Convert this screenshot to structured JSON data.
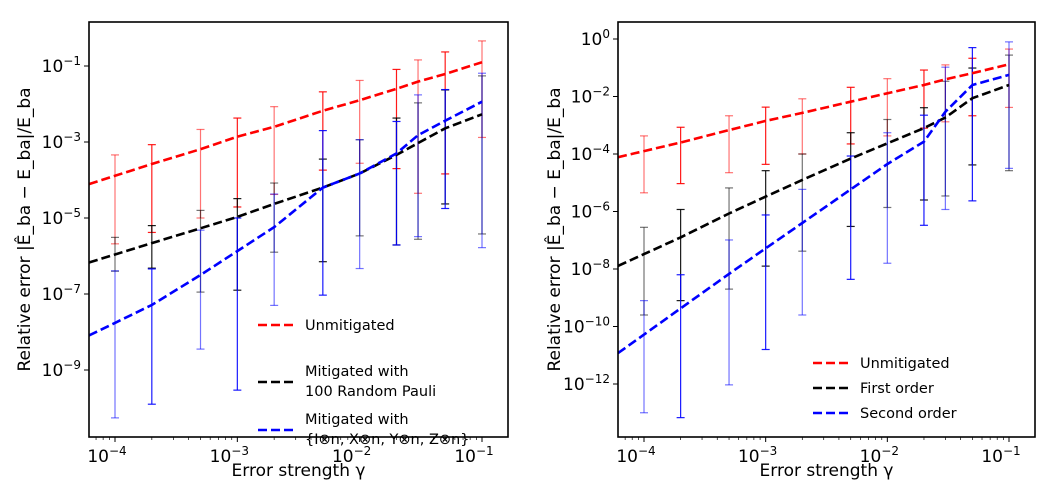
{
  "chart_data": [
    {
      "type": "line",
      "panel": "left",
      "title": "",
      "xlabel": "Error strength γ",
      "ylabel": "Relative error |Ê_ba − E_ba|/E_ba",
      "xscale": "log",
      "yscale": "log",
      "xlim_log10": [
        -4.21,
        -0.81
      ],
      "ylim_log10": [
        -10.76,
        0.16
      ],
      "grid": false,
      "legend_position": "lower-right",
      "x_ticks": [
        {
          "log": -4,
          "label": "10",
          "exp": "−4"
        },
        {
          "log": -3,
          "label": "10",
          "exp": "−3"
        },
        {
          "log": -2,
          "label": "10",
          "exp": "−2"
        },
        {
          "log": -1,
          "label": "10",
          "exp": "−1"
        }
      ],
      "y_ticks": [
        {
          "log": -1,
          "label": "10",
          "exp": "−1"
        },
        {
          "log": -3,
          "label": "10",
          "exp": "−3"
        },
        {
          "log": -5,
          "label": "10",
          "exp": "−5"
        },
        {
          "log": -7,
          "label": "10",
          "exp": "−7"
        },
        {
          "log": -9,
          "label": "10",
          "exp": "−9"
        }
      ],
      "x": [
        0.0001,
        0.0002,
        0.0005,
        0.001,
        0.002,
        0.005,
        0.01,
        0.02,
        0.03,
        0.05,
        0.1
      ],
      "series": [
        {
          "name": "Unmitigated",
          "legend_lines": [
            "Unmitigated"
          ],
          "color": "#ff0000",
          "values_log10": [
            -3.89,
            -3.58,
            -3.19,
            -2.86,
            -2.6,
            -2.18,
            -1.9,
            -1.6,
            -1.41,
            -1.21,
            -0.9
          ],
          "err_upper_log10": [
            -3.34,
            -3.07,
            -2.67,
            -2.37,
            -2.07,
            -1.68,
            -1.38,
            -1.09,
            -0.84,
            -0.63,
            -0.34
          ],
          "err_lower_log10": [
            -5.68,
            -5.38,
            -5.0,
            -4.71,
            -4.38,
            -3.74,
            -3.56,
            -3.7,
            -4.35,
            -3.84,
            -2.88
          ]
        },
        {
          "name": "Mitigated with 100 Random Pauli",
          "legend_lines": [
            "Mitigated with",
            "100 Random Pauli"
          ],
          "color": "#000000",
          "values_log10": [
            -5.96,
            -5.66,
            -5.27,
            -4.97,
            -4.63,
            -4.2,
            -3.83,
            -3.34,
            -3.03,
            -2.64,
            -2.27
          ],
          "err_upper_log10": [
            -5.51,
            -5.2,
            -4.8,
            -4.49,
            -4.08,
            -3.45,
            -2.94,
            -2.37,
            -1.97,
            -1.63,
            -1.26
          ],
          "err_lower_log10": [
            -6.4,
            -6.32,
            -6.95,
            -6.9,
            -5.9,
            -6.15,
            -5.47,
            -5.71,
            -5.56,
            -4.63,
            -5.42
          ]
        },
        {
          "name": "Mitigated with {I⊗n, X⊗n, Y⊗n, Z⊗n}",
          "legend_lines": [
            "Mitigated with",
            "{I⊗n, X⊗n, Y⊗n, Z⊗n}"
          ],
          "color": "#0000ff",
          "values_log10": [
            -7.76,
            -7.29,
            -6.5,
            -5.87,
            -5.24,
            -4.2,
            -3.83,
            -3.3,
            -2.82,
            -2.44,
            -1.94
          ],
          "err_upper_log10": [
            -6.39,
            -6.34,
            -5.32,
            -5.0,
            -4.37,
            -2.7,
            -2.94,
            -2.46,
            -1.76,
            -1.62,
            -1.19
          ],
          "err_lower_log10": [
            -10.26,
            -9.9,
            -8.45,
            -9.53,
            -7.3,
            -7.03,
            -6.33,
            -5.71,
            -5.49,
            -4.75,
            -5.78
          ]
        }
      ]
    },
    {
      "type": "line",
      "panel": "right",
      "title": "",
      "xlabel": "Error strength γ",
      "ylabel": "Relative error |Ê_ba − E_ba|/E_ba",
      "xscale": "log",
      "yscale": "log",
      "xlim_log10": [
        -4.21,
        -0.79
      ],
      "ylim_log10": [
        0.59,
        -14.25
      ],
      "grid": false,
      "legend_position": "lower-right",
      "x_ticks": [
        {
          "log": -4,
          "label": "10",
          "exp": "−4"
        },
        {
          "log": -3,
          "label": "10",
          "exp": "−3"
        },
        {
          "log": -2,
          "label": "10",
          "exp": "−2"
        },
        {
          "log": -1,
          "label": "10",
          "exp": "−1"
        }
      ],
      "y_ticks": [
        {
          "log": 0,
          "label": "10",
          "exp": "0"
        },
        {
          "log": -2,
          "label": "10",
          "exp": "−2"
        },
        {
          "log": -4,
          "label": "10",
          "exp": "−4"
        },
        {
          "log": -6,
          "label": "10",
          "exp": "−6"
        },
        {
          "log": -8,
          "label": "10",
          "exp": "−8"
        },
        {
          "log": -10,
          "label": "10",
          "exp": "−10"
        },
        {
          "log": -12,
          "label": "10",
          "exp": "−12"
        }
      ],
      "x": [
        0.0001,
        0.0002,
        0.0005,
        0.001,
        0.002,
        0.005,
        0.01,
        0.02,
        0.03,
        0.05,
        0.1
      ],
      "series": [
        {
          "name": "Unmitigated",
          "legend_lines": [
            "Unmitigated"
          ],
          "color": "#ff0000",
          "values_log10": [
            -3.9,
            -3.6,
            -3.17,
            -2.85,
            -2.57,
            -2.18,
            -1.89,
            -1.6,
            -1.4,
            -1.19,
            -0.88
          ],
          "err_upper_log10": [
            -3.37,
            -3.07,
            -2.67,
            -2.37,
            -2.08,
            -1.68,
            -1.38,
            -1.08,
            -0.9,
            -0.67,
            -0.35
          ],
          "err_lower_log10": [
            -5.35,
            -5.03,
            -4.65,
            -4.36,
            -4.0,
            -3.65,
            -3.37,
            -3.1,
            -2.88,
            -2.67,
            -2.38
          ]
        },
        {
          "name": "First order",
          "legend_lines": [
            "First order"
          ],
          "color": "#000000",
          "values_log10": [
            -7.48,
            -6.9,
            -6.07,
            -5.48,
            -4.9,
            -4.16,
            -3.63,
            -3.1,
            -2.73,
            -2.06,
            -1.6
          ],
          "err_upper_log10": [
            -6.55,
            -5.93,
            -5.18,
            -4.58,
            -4.0,
            -3.26,
            -2.8,
            -2.39,
            -1.47,
            -1.01,
            -0.56
          ],
          "err_lower_log10": [
            -9.6,
            -9.1,
            -8.7,
            -7.9,
            -7.38,
            -6.52,
            -5.86,
            -5.6,
            -5.46,
            -4.38,
            -4.58
          ]
        },
        {
          "name": "Second order",
          "legend_lines": [
            "Second order"
          ],
          "color": "#0000ff",
          "values_log10": [
            -10.28,
            -9.37,
            -8.17,
            -7.28,
            -6.4,
            -5.23,
            -4.35,
            -3.57,
            -2.53,
            -1.6,
            -1.25
          ],
          "err_upper_log10": [
            -9.1,
            -8.2,
            -6.99,
            -6.12,
            -5.23,
            -4.07,
            -3.26,
            -2.65,
            -0.98,
            -0.3,
            -0.1
          ],
          "err_lower_log10": [
            -13.0,
            -13.17,
            -12.03,
            -10.8,
            -9.6,
            -8.36,
            -7.8,
            -6.48,
            -5.93,
            -5.63,
            -4.5
          ]
        }
      ]
    }
  ]
}
